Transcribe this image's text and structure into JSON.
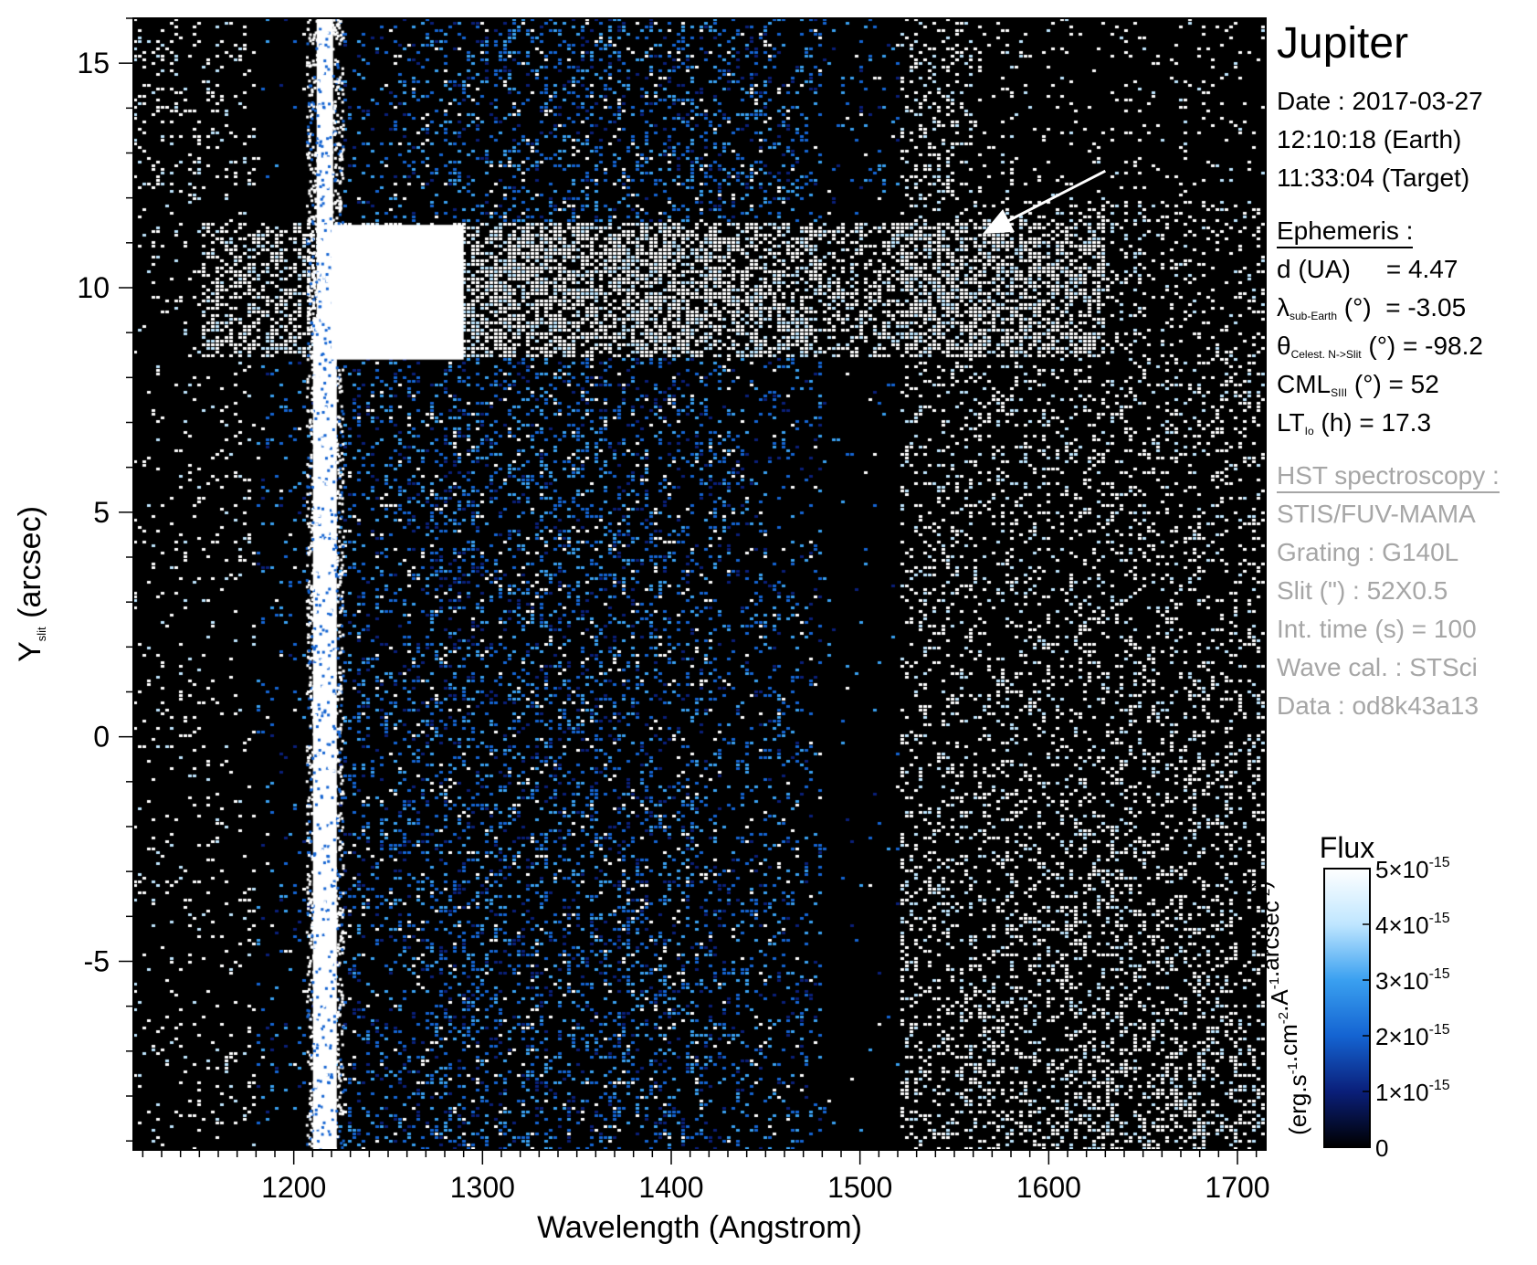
{
  "chart_data": {
    "type": "heatmap",
    "xlabel": "Wavelength (Angstrom)",
    "ylabel": {
      "base": "Y",
      "sub": "slit",
      "rest": " (arcsec)"
    },
    "xlim": [
      1115,
      1715
    ],
    "ylim": [
      -9.2,
      16
    ],
    "x_ticks": [
      1200,
      1300,
      1400,
      1500,
      1600,
      1700
    ],
    "x_tick_labels": [
      "1200",
      "1300",
      "1400",
      "1500",
      "1600",
      "1700"
    ],
    "y_ticks": [
      -5,
      0,
      5,
      10,
      15
    ],
    "y_tick_labels": [
      "-5",
      "0",
      "5",
      "10",
      "15"
    ],
    "x_minor_step": 10,
    "y_minor_step": 1,
    "features": {
      "lyman_alpha_line_wavelength": 1216,
      "bright_band_y_range": [
        8.5,
        11.5
      ],
      "bright_band_x_range": [
        1150,
        1630
      ]
    },
    "arrow": {
      "from": [
        1630,
        12.6
      ],
      "to": [
        1565,
        11.2
      ]
    },
    "colorbar": {
      "title": "Flux",
      "range": [
        0,
        5e-15
      ],
      "ticks": [
        0,
        1e-15,
        2e-15,
        3e-15,
        4e-15,
        5e-15
      ],
      "tick_labels": [
        {
          "base": "0",
          "exp": ""
        },
        {
          "base": "1×10",
          "exp": "-15"
        },
        {
          "base": "2×10",
          "exp": "-15"
        },
        {
          "base": "3×10",
          "exp": "-15"
        },
        {
          "base": "4×10",
          "exp": "-15"
        },
        {
          "base": "5×10",
          "exp": "-15"
        }
      ],
      "unit": "(erg.s-1.cm-2.A-1.arcsec-2)",
      "colors": [
        "#000000",
        "#0a1f7a",
        "#1464d2",
        "#3aa0f0",
        "#bfe6ff",
        "#ffffff"
      ]
    }
  },
  "info": {
    "title": "Jupiter",
    "date_line": "Date : 2017-03-27",
    "earth_time": "12:10:18 (Earth)",
    "target_time": "11:33:04 (Target)",
    "ephemeris_header": "Ephemeris :",
    "d_label": "d (UA)",
    "d_value": "= 4.47",
    "lambda_symbol": "λ",
    "lambda_sub": "sub-Earth",
    "lambda_rest": " (°)  = -3.05",
    "theta_symbol": "θ",
    "theta_sub": "Celest. N->Slit",
    "theta_rest": " (°) = -98.2",
    "cml_base": "CML",
    "cml_sub": "SIII",
    "cml_rest": " (°) = 52",
    "lt_base": "LT",
    "lt_sub": "Io",
    "lt_rest": " (h) = 17.3",
    "hst_header": "HST spectroscopy :",
    "instrument": "STIS/FUV-MAMA",
    "grating": "Grating : G140L",
    "slit": "Slit (\") : 52X0.5",
    "int_time": "Int. time (s) = 100",
    "wave_cal": "Wave cal. : STSci",
    "data_id": "Data : od8k43a13"
  }
}
